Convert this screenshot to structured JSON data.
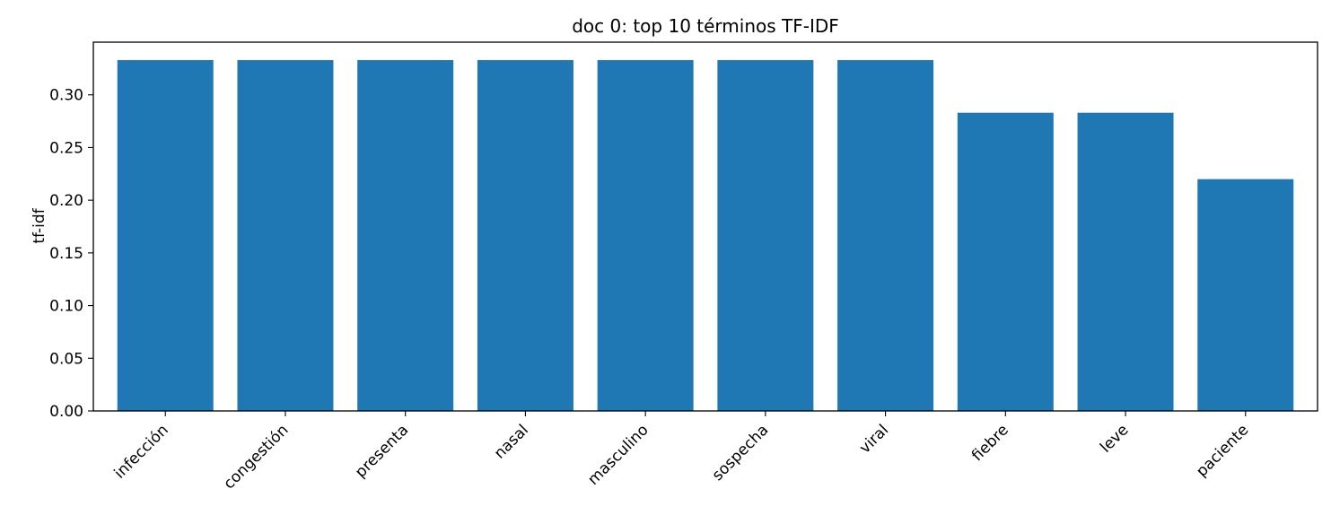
{
  "chart_data": {
    "type": "bar",
    "title": "doc 0: top 10 términos TF-IDF",
    "xlabel": "",
    "ylabel": "tf-idf",
    "categories": [
      "infección",
      "congestión",
      "presenta",
      "nasal",
      "masculino",
      "sospecha",
      "viral",
      "fiebre",
      "leve",
      "paciente"
    ],
    "values": [
      0.333,
      0.333,
      0.333,
      0.333,
      0.333,
      0.333,
      0.333,
      0.283,
      0.283,
      0.22
    ],
    "ylim": [
      0,
      0.35
    ],
    "yticks": [
      "0.00",
      "0.05",
      "0.10",
      "0.15",
      "0.20",
      "0.25",
      "0.30"
    ],
    "grid": false,
    "bar_color": "#1f77b4"
  }
}
